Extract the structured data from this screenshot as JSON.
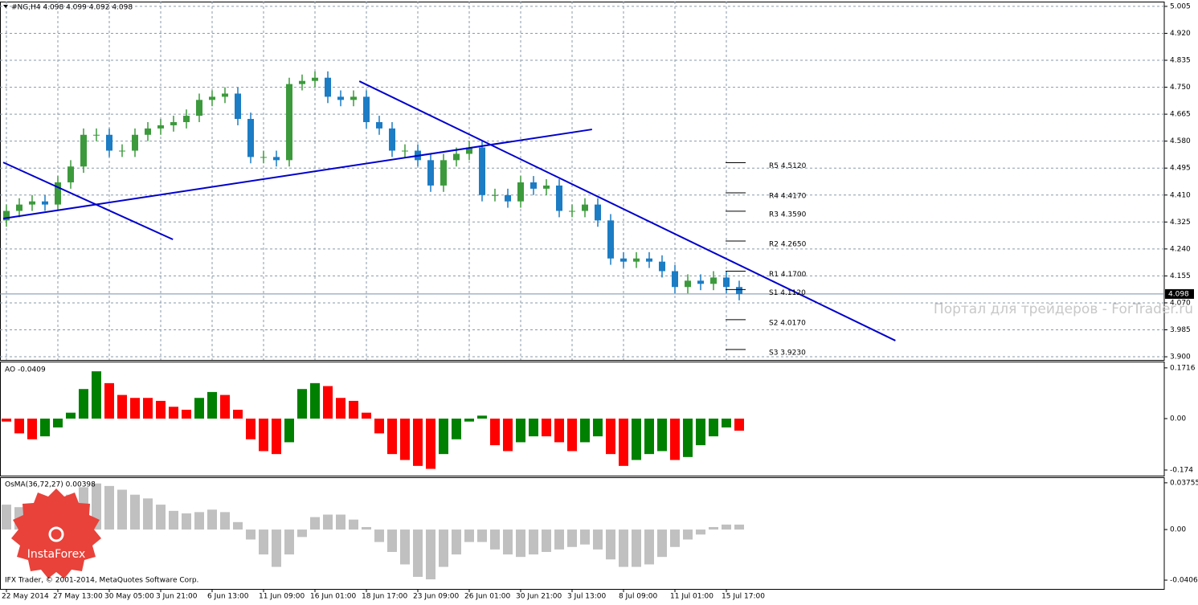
{
  "chart_data": [
    {
      "type": "candlestick",
      "title": "#NG,H4  4.098 4.099 4.092 4.098",
      "categories": [
        "22 May 2014",
        null,
        null,
        null,
        "27 May 13:00",
        null,
        null,
        null,
        "30 May 05:00",
        null,
        null,
        null,
        "3 Jun 21:00",
        null,
        null,
        null,
        "6 Jun 13:00",
        null,
        null,
        null,
        "11 Jun 09:00",
        null,
        null,
        null,
        "16 Jun 01:00",
        null,
        null,
        null,
        "18 Jun 17:00",
        null,
        null,
        null,
        "23 Jun 09:00",
        null,
        null,
        null,
        "26 Jun 01:00",
        null,
        null,
        null,
        "30 Jun 21:00",
        null,
        null,
        null,
        "3 Jul 13:00",
        null,
        null,
        null,
        "8 Jul 09:00",
        null,
        null,
        null,
        "11 Jul 01:00",
        null,
        null,
        null,
        "15 Jul 17:00",
        null
      ],
      "open": [
        4.33,
        4.36,
        4.38,
        4.39,
        4.38,
        4.45,
        4.5,
        4.6,
        4.6,
        4.55,
        4.55,
        4.6,
        4.62,
        4.63,
        4.64,
        4.66,
        4.71,
        4.72,
        4.73,
        4.65,
        4.53,
        4.53,
        4.52,
        4.76,
        4.77,
        4.78,
        4.72,
        4.71,
        4.72,
        4.64,
        4.62,
        4.55,
        4.55,
        4.52,
        4.44,
        4.52,
        4.54,
        4.56,
        4.41,
        4.41,
        4.39,
        4.45,
        4.43,
        4.44,
        4.36,
        4.36,
        4.38,
        4.33,
        4.21,
        4.2,
        4.21,
        4.2,
        4.17,
        4.12,
        4.14,
        4.13,
        4.15,
        4.12
      ],
      "high": [
        4.38,
        4.4,
        4.41,
        4.41,
        4.47,
        4.52,
        4.62,
        4.62,
        4.62,
        4.57,
        4.62,
        4.64,
        4.65,
        4.66,
        4.68,
        4.73,
        4.74,
        4.75,
        4.75,
        4.67,
        4.55,
        4.55,
        4.78,
        4.79,
        4.8,
        4.8,
        4.74,
        4.74,
        4.74,
        4.66,
        4.64,
        4.57,
        4.57,
        4.54,
        4.54,
        4.56,
        4.58,
        4.58,
        4.43,
        4.43,
        4.47,
        4.47,
        4.46,
        4.46,
        4.38,
        4.4,
        4.4,
        4.35,
        4.23,
        4.23,
        4.23,
        4.22,
        4.19,
        4.16,
        4.16,
        4.17,
        4.17,
        4.14
      ],
      "low": [
        4.31,
        4.34,
        4.36,
        4.36,
        4.36,
        4.43,
        4.48,
        4.58,
        4.53,
        4.53,
        4.53,
        4.58,
        4.6,
        4.61,
        4.62,
        4.64,
        4.69,
        4.7,
        4.63,
        4.51,
        4.51,
        4.5,
        4.5,
        4.74,
        4.75,
        4.7,
        4.69,
        4.69,
        4.62,
        4.6,
        4.53,
        4.53,
        4.5,
        4.42,
        4.42,
        4.5,
        4.52,
        4.39,
        4.39,
        4.37,
        4.37,
        4.41,
        4.41,
        4.34,
        4.34,
        4.34,
        4.31,
        4.19,
        4.18,
        4.18,
        4.18,
        4.15,
        4.1,
        4.1,
        4.11,
        4.11,
        4.1,
        4.078
      ],
      "close": [
        4.36,
        4.38,
        4.39,
        4.38,
        4.45,
        4.5,
        4.6,
        4.6,
        4.55,
        4.55,
        4.6,
        4.62,
        4.63,
        4.64,
        4.66,
        4.71,
        4.72,
        4.73,
        4.65,
        4.53,
        4.53,
        4.52,
        4.76,
        4.77,
        4.78,
        4.72,
        4.71,
        4.72,
        4.64,
        4.62,
        4.55,
        4.55,
        4.52,
        4.44,
        4.52,
        4.54,
        4.56,
        4.41,
        4.41,
        4.39,
        4.45,
        4.43,
        4.44,
        4.36,
        4.36,
        4.38,
        4.33,
        4.21,
        4.2,
        4.21,
        4.2,
        4.17,
        4.12,
        4.14,
        4.13,
        4.15,
        4.12,
        4.098
      ],
      "up_color": "#3c9a3c",
      "down_color": "#1c7cc4",
      "ylim": [
        3.89,
        5.02
      ],
      "yticks": [
        5.005,
        {
          "value": 4.92,
          "label": "4.920"
        },
        4.835,
        {
          "value": 4.75,
          "label": "4.750"
        },
        4.665,
        {
          "value": 4.58,
          "label": "4.580"
        },
        4.495,
        {
          "value": 4.41,
          "label": "4.410"
        },
        4.325,
        {
          "value": 4.24,
          "label": "4.240"
        },
        4.155,
        {
          "value": 4.07,
          "label": "4.070"
        },
        3.985,
        {
          "value": 3.9,
          "label": "3.900"
        }
      ],
      "grid": true,
      "current_price": 4.098,
      "trendlines": [
        {
          "color": "#0000cc",
          "x": [
            0,
            13.2
          ],
          "y": [
            4.513,
            4.27
          ]
        },
        {
          "color": "#0000cc",
          "x": [
            0,
            45.8
          ],
          "y": [
            4.336,
            4.617
          ]
        },
        {
          "color": "#0000cc",
          "x": [
            27.7,
            69.4
          ],
          "y": [
            4.769,
            3.951
          ]
        }
      ],
      "levels": [
        {
          "value": 4.512,
          "label": "R5 4.5120"
        },
        {
          "value": 4.417,
          "label": "R4 4.4170"
        },
        {
          "value": 4.359,
          "label": "R3 4.3590"
        },
        {
          "value": 4.265,
          "label": "R2 4.2650"
        },
        {
          "value": 4.17,
          "label": "R1 4.1700"
        },
        {
          "value": 4.112,
          "label": "S1 4.1120"
        },
        {
          "value": 4.017,
          "label": "S2 4.0170"
        },
        {
          "value": 3.923,
          "label": "S3 3.9230"
        }
      ],
      "watermark": "Портал для трейдеров - ForTrader.ru"
    },
    {
      "type": "histogram",
      "title": "AO -0.0409",
      "values": [
        -0.01,
        -0.05,
        -0.07,
        -0.06,
        -0.03,
        0.02,
        0.1,
        0.16,
        0.12,
        0.08,
        0.07,
        0.07,
        0.06,
        0.04,
        0.03,
        0.07,
        0.09,
        0.08,
        0.03,
        -0.07,
        -0.11,
        -0.12,
        -0.08,
        0.1,
        0.12,
        0.11,
        0.07,
        0.06,
        0.02,
        -0.05,
        -0.12,
        -0.14,
        -0.16,
        -0.17,
        -0.12,
        -0.07,
        -0.01,
        0.01,
        -0.09,
        -0.11,
        -0.08,
        -0.06,
        -0.06,
        -0.08,
        -0.11,
        -0.08,
        -0.06,
        -0.12,
        -0.16,
        -0.14,
        -0.12,
        -0.11,
        -0.14,
        -0.13,
        -0.09,
        -0.06,
        -0.03,
        -0.0409
      ],
      "up_color": "#008000",
      "down_color": "#ff0000",
      "ylim": [
        -0.193,
        0.193
      ],
      "yticks": [
        0.1716,
        {
          "value": 0,
          "label": "0.00"
        },
        -0.174
      ]
    },
    {
      "type": "histogram",
      "title": "OsMA(36,72,27) 0.00398",
      "values": [
        0.02,
        0.018,
        0.015,
        0.018,
        0.022,
        0.028,
        0.034,
        0.037,
        0.035,
        0.032,
        0.028,
        0.025,
        0.02,
        0.015,
        0.013,
        0.014,
        0.016,
        0.014,
        0.006,
        -0.008,
        -0.02,
        -0.03,
        -0.02,
        -0.006,
        0.01,
        0.012,
        0.012,
        0.008,
        0.002,
        -0.01,
        -0.018,
        -0.028,
        -0.038,
        -0.04,
        -0.03,
        -0.02,
        -0.01,
        -0.01,
        -0.016,
        -0.02,
        -0.022,
        -0.02,
        -0.018,
        -0.016,
        -0.014,
        -0.012,
        -0.016,
        -0.024,
        -0.03,
        -0.03,
        -0.028,
        -0.022,
        -0.014,
        -0.008,
        -0.004,
        0.002,
        0.004,
        0.00398
      ],
      "color": "#c0c0c0",
      "ylim": [
        -0.0477,
        0.042
      ],
      "yticks": [
        0.03755,
        {
          "value": 0,
          "label": "0.00"
        },
        -0.04063
      ]
    }
  ],
  "footer": "IFX Trader, © 2001-2014, MetaQuotes Software Corp.",
  "logo": "InstaForex"
}
